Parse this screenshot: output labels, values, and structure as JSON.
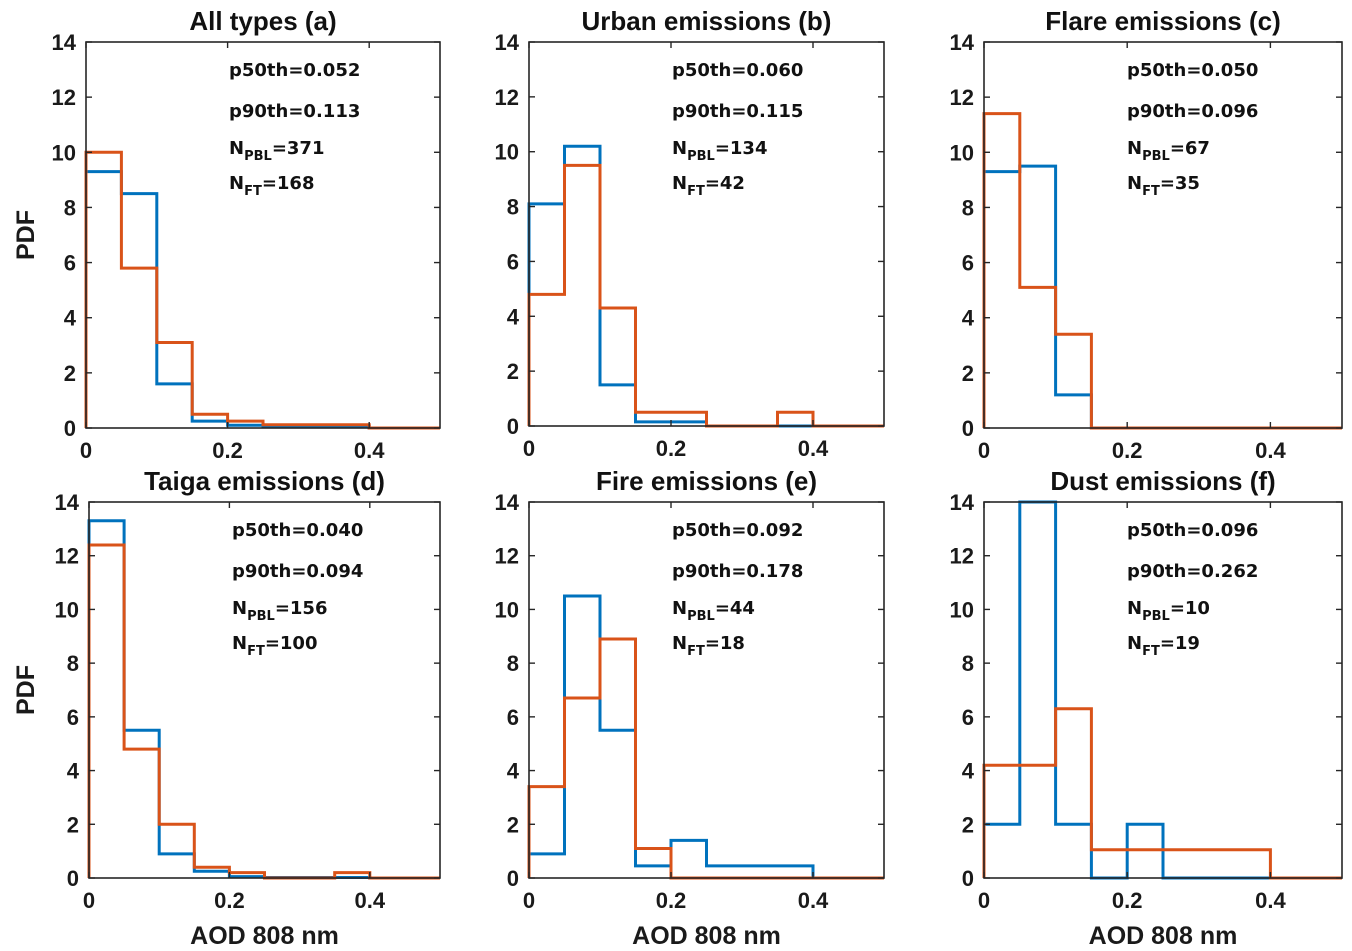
{
  "figure": {
    "ylabel": "PDF",
    "xlabel": "AOD 808 nm"
  },
  "colors": {
    "series_blue": "#0072BD",
    "series_orange": "#D95319",
    "axis": "#262626"
  },
  "chart_data": [
    {
      "type": "histogram",
      "title": "All types (a)",
      "xlim": [
        0,
        0.5
      ],
      "ylim": [
        0,
        14
      ],
      "xticks": [
        "0",
        "0.2",
        "0.4"
      ],
      "yticks": [
        "0",
        "2",
        "4",
        "6",
        "8",
        "10",
        "12",
        "14"
      ],
      "bin_edges": [
        0,
        0.05,
        0.1,
        0.15,
        0.2,
        0.25,
        0.3,
        0.35,
        0.4,
        0.45,
        0.5
      ],
      "series": [
        {
          "color": "#0072BD",
          "values": [
            9.3,
            8.5,
            1.6,
            0.25,
            0.1,
            0.05,
            0.05,
            0.05,
            0,
            0
          ]
        },
        {
          "color": "#D95319",
          "values": [
            10.0,
            5.8,
            3.1,
            0.5,
            0.25,
            0.12,
            0.12,
            0.12,
            0,
            0
          ]
        }
      ],
      "stats": {
        "p50": "p50th=0.052",
        "p90": "p90th=0.113",
        "npbl_value": "=371",
        "nft_value": "=168"
      }
    },
    {
      "type": "histogram",
      "title": "Urban emissions (b)",
      "xlim": [
        0,
        0.5
      ],
      "ylim": [
        0,
        14
      ],
      "xticks": [
        "0",
        "0.2",
        "0.4"
      ],
      "yticks": [
        "0",
        "2",
        "4",
        "6",
        "8",
        "10",
        "12",
        "14"
      ],
      "bin_edges": [
        0,
        0.05,
        0.1,
        0.15,
        0.2,
        0.25,
        0.3,
        0.35,
        0.4,
        0.45,
        0.5
      ],
      "series": [
        {
          "color": "#0072BD",
          "values": [
            8.1,
            10.2,
            1.5,
            0.15,
            0.15,
            0,
            0,
            0,
            0,
            0
          ]
        },
        {
          "color": "#D95319",
          "values": [
            4.8,
            9.5,
            4.3,
            0.5,
            0.5,
            0,
            0,
            0.5,
            0,
            0
          ]
        }
      ],
      "stats": {
        "p50": "p50th=0.060",
        "p90": "p90th=0.115",
        "npbl_value": "=134",
        "nft_value": "=42"
      }
    },
    {
      "type": "histogram",
      "title": "Flare emissions (c)",
      "xlim": [
        0,
        0.5
      ],
      "ylim": [
        0,
        14
      ],
      "xticks": [
        "0",
        "0.2",
        "0.4"
      ],
      "yticks": [
        "0",
        "2",
        "4",
        "6",
        "8",
        "10",
        "12",
        "14"
      ],
      "bin_edges": [
        0,
        0.05,
        0.1,
        0.15,
        0.2,
        0.25,
        0.3,
        0.35,
        0.4,
        0.45,
        0.5
      ],
      "series": [
        {
          "color": "#0072BD",
          "values": [
            9.3,
            9.5,
            1.2,
            0,
            0,
            0,
            0,
            0,
            0,
            0
          ]
        },
        {
          "color": "#D95319",
          "values": [
            11.4,
            5.1,
            3.4,
            0,
            0,
            0,
            0,
            0,
            0,
            0
          ]
        }
      ],
      "stats": {
        "p50": "p50th=0.050",
        "p90": "p90th=0.096",
        "npbl_value": "=67",
        "nft_value": "=35"
      }
    },
    {
      "type": "histogram",
      "title": "Taiga emissions (d)",
      "xlim": [
        0,
        0.5
      ],
      "ylim": [
        0,
        14
      ],
      "xticks": [
        "0",
        "0.2",
        "0.4"
      ],
      "yticks": [
        "0",
        "2",
        "4",
        "6",
        "8",
        "10",
        "12",
        "14"
      ],
      "bin_edges": [
        0,
        0.05,
        0.1,
        0.15,
        0.2,
        0.25,
        0.3,
        0.35,
        0.4,
        0.45,
        0.5
      ],
      "series": [
        {
          "color": "#0072BD",
          "values": [
            13.3,
            5.5,
            0.9,
            0.25,
            0.05,
            0.02,
            0.02,
            0.02,
            0,
            0
          ]
        },
        {
          "color": "#D95319",
          "values": [
            12.4,
            4.8,
            2.0,
            0.4,
            0.2,
            0,
            0,
            0.2,
            0,
            0
          ]
        }
      ],
      "stats": {
        "p50": "p50th=0.040",
        "p90": "p90th=0.094",
        "npbl_value": "=156",
        "nft_value": "=100"
      }
    },
    {
      "type": "histogram",
      "title": "Fire emissions (e)",
      "xlim": [
        0,
        0.5
      ],
      "ylim": [
        0,
        14
      ],
      "xticks": [
        "0",
        "0.2",
        "0.4"
      ],
      "yticks": [
        "0",
        "2",
        "4",
        "6",
        "8",
        "10",
        "12",
        "14"
      ],
      "bin_edges": [
        0,
        0.05,
        0.1,
        0.15,
        0.2,
        0.25,
        0.3,
        0.35,
        0.4,
        0.45,
        0.5
      ],
      "series": [
        {
          "color": "#0072BD",
          "values": [
            0.9,
            10.5,
            5.5,
            0.45,
            1.4,
            0.45,
            0.45,
            0.45,
            0,
            0
          ]
        },
        {
          "color": "#D95319",
          "values": [
            3.4,
            6.7,
            8.9,
            1.1,
            0,
            0,
            0,
            0,
            0,
            0
          ]
        }
      ],
      "stats": {
        "p50": "p50th=0.092",
        "p90": "p90th=0.178",
        "npbl_value": "=44",
        "nft_value": "=18"
      }
    },
    {
      "type": "histogram",
      "title": "Dust emissions (f)",
      "xlim": [
        0,
        0.5
      ],
      "ylim": [
        0,
        14
      ],
      "xticks": [
        "0",
        "0.2",
        "0.4"
      ],
      "yticks": [
        "0",
        "2",
        "4",
        "6",
        "8",
        "10",
        "12",
        "14"
      ],
      "bin_edges": [
        0,
        0.05,
        0.1,
        0.15,
        0.2,
        0.25,
        0.3,
        0.35,
        0.4,
        0.45,
        0.5
      ],
      "series": [
        {
          "color": "#0072BD",
          "values": [
            2.0,
            14.0,
            2.0,
            0,
            2.0,
            0,
            0,
            0,
            0,
            0
          ]
        },
        {
          "color": "#D95319",
          "values": [
            4.2,
            4.2,
            6.3,
            1.05,
            1.05,
            1.05,
            1.05,
            1.05,
            0,
            0
          ]
        }
      ],
      "stats": {
        "p50": "p50th=0.096",
        "p90": "p90th=0.262",
        "npbl_value": "=10",
        "nft_value": "=19"
      }
    }
  ]
}
